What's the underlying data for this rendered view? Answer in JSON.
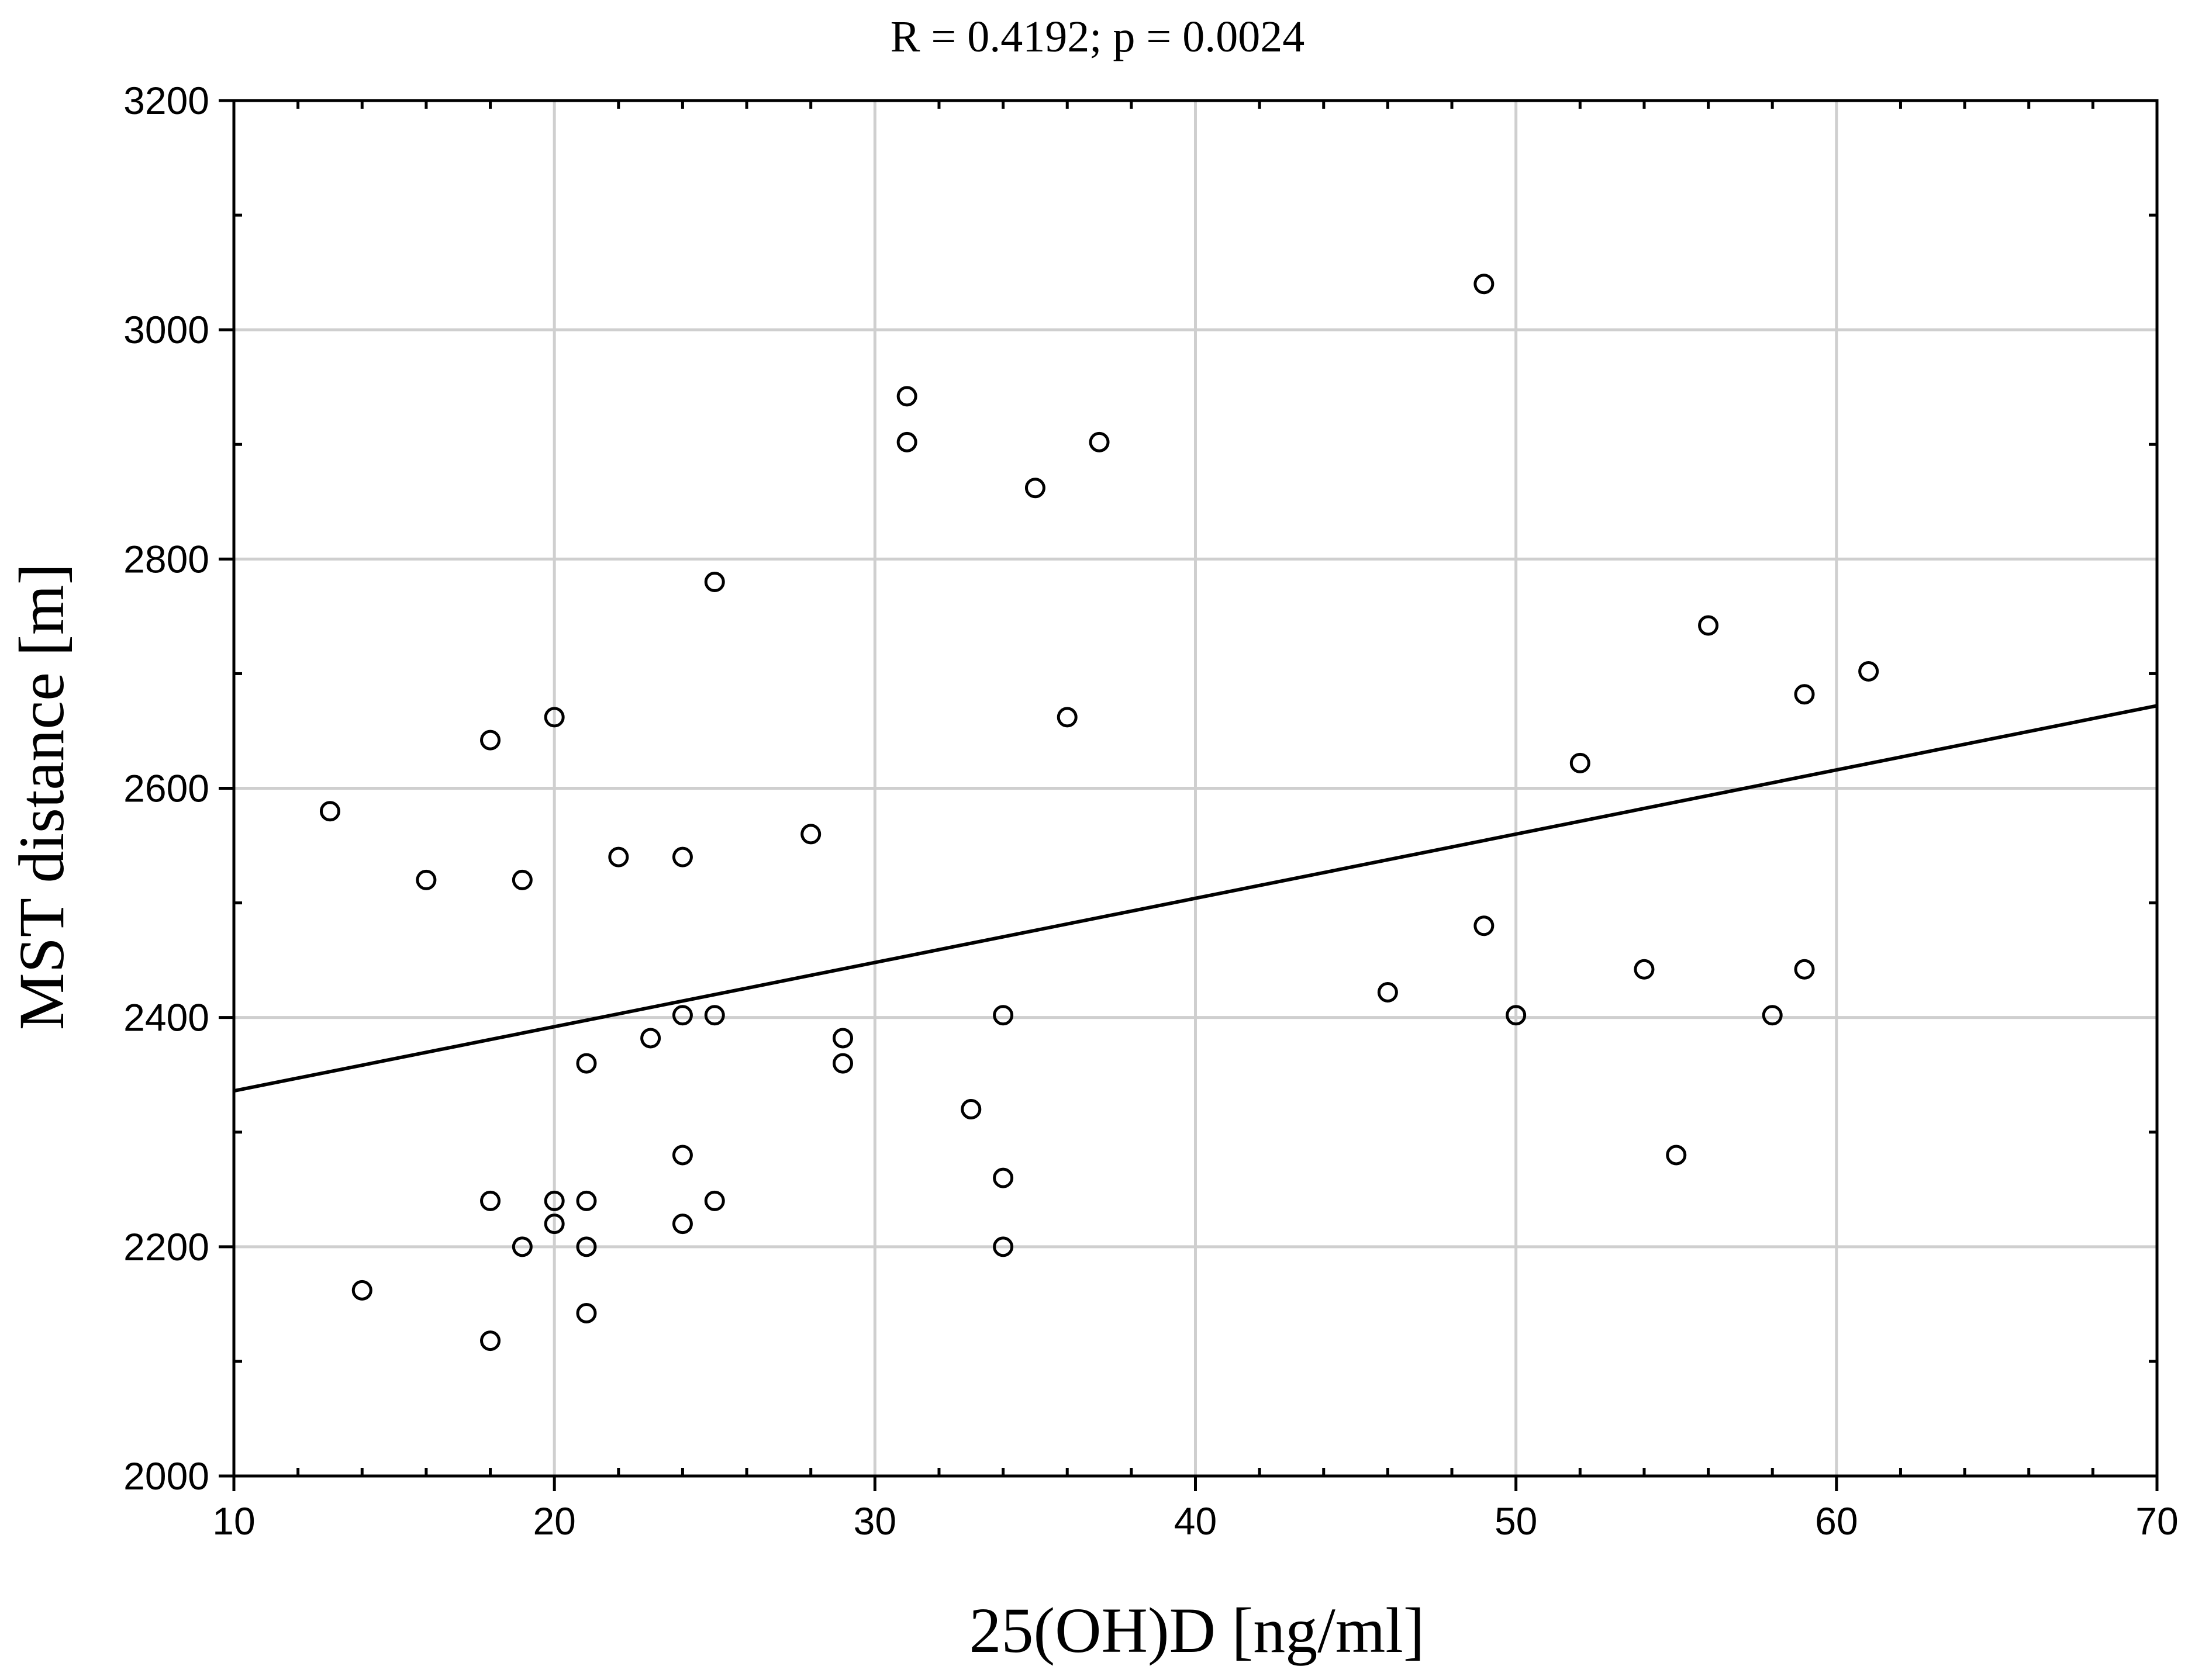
{
  "chart_data": {
    "type": "scatter",
    "title": "R = 0.4192; p = 0.0024",
    "xlabel": "25(OH)D [ng/ml]",
    "ylabel": "MST distance [m]",
    "xlim": [
      10,
      70
    ],
    "ylim": [
      2000,
      3200
    ],
    "x_ticks": [
      10,
      20,
      30,
      40,
      50,
      60,
      70
    ],
    "y_ticks": [
      2000,
      2200,
      2400,
      2600,
      2800,
      3000,
      3200
    ],
    "x_tick_labels": [
      "10",
      "20",
      "30",
      "40",
      "50",
      "60",
      "70"
    ],
    "y_tick_labels": [
      "2000",
      "2200",
      "2400",
      "2600",
      "2800",
      "3000",
      "3200"
    ],
    "grid": true,
    "series": [
      {
        "name": "observations",
        "marker": "open-circle",
        "color": "#000000",
        "points": [
          {
            "x": 13,
            "y": 2580
          },
          {
            "x": 14,
            "y": 2162
          },
          {
            "x": 16,
            "y": 2520
          },
          {
            "x": 18,
            "y": 2642
          },
          {
            "x": 18,
            "y": 2240
          },
          {
            "x": 18,
            "y": 2118
          },
          {
            "x": 19,
            "y": 2520
          },
          {
            "x": 19,
            "y": 2200
          },
          {
            "x": 20,
            "y": 2662
          },
          {
            "x": 20,
            "y": 2240
          },
          {
            "x": 20,
            "y": 2220
          },
          {
            "x": 21,
            "y": 2360
          },
          {
            "x": 21,
            "y": 2240
          },
          {
            "x": 21,
            "y": 2200
          },
          {
            "x": 21,
            "y": 2142
          },
          {
            "x": 22,
            "y": 2540
          },
          {
            "x": 23,
            "y": 2382
          },
          {
            "x": 24,
            "y": 2540
          },
          {
            "x": 24,
            "y": 2402
          },
          {
            "x": 24,
            "y": 2280
          },
          {
            "x": 24,
            "y": 2220
          },
          {
            "x": 25,
            "y": 2780
          },
          {
            "x": 25,
            "y": 2402
          },
          {
            "x": 25,
            "y": 2240
          },
          {
            "x": 28,
            "y": 2560
          },
          {
            "x": 29,
            "y": 2382
          },
          {
            "x": 29,
            "y": 2360
          },
          {
            "x": 31,
            "y": 2942
          },
          {
            "x": 31,
            "y": 2902
          },
          {
            "x": 33,
            "y": 2320
          },
          {
            "x": 34,
            "y": 2402
          },
          {
            "x": 34,
            "y": 2260
          },
          {
            "x": 34,
            "y": 2200
          },
          {
            "x": 35,
            "y": 2862
          },
          {
            "x": 36,
            "y": 2662
          },
          {
            "x": 37,
            "y": 2902
          },
          {
            "x": 46,
            "y": 2422
          },
          {
            "x": 49,
            "y": 3040
          },
          {
            "x": 49,
            "y": 2480
          },
          {
            "x": 50,
            "y": 2402
          },
          {
            "x": 52,
            "y": 2622
          },
          {
            "x": 54,
            "y": 2442
          },
          {
            "x": 55,
            "y": 2280
          },
          {
            "x": 56,
            "y": 2742
          },
          {
            "x": 58,
            "y": 2402
          },
          {
            "x": 59,
            "y": 2682
          },
          {
            "x": 59,
            "y": 2442
          },
          {
            "x": 61,
            "y": 2702
          }
        ]
      }
    ],
    "regression_line": {
      "x": [
        10,
        70
      ],
      "y": [
        2336,
        2672
      ]
    }
  }
}
